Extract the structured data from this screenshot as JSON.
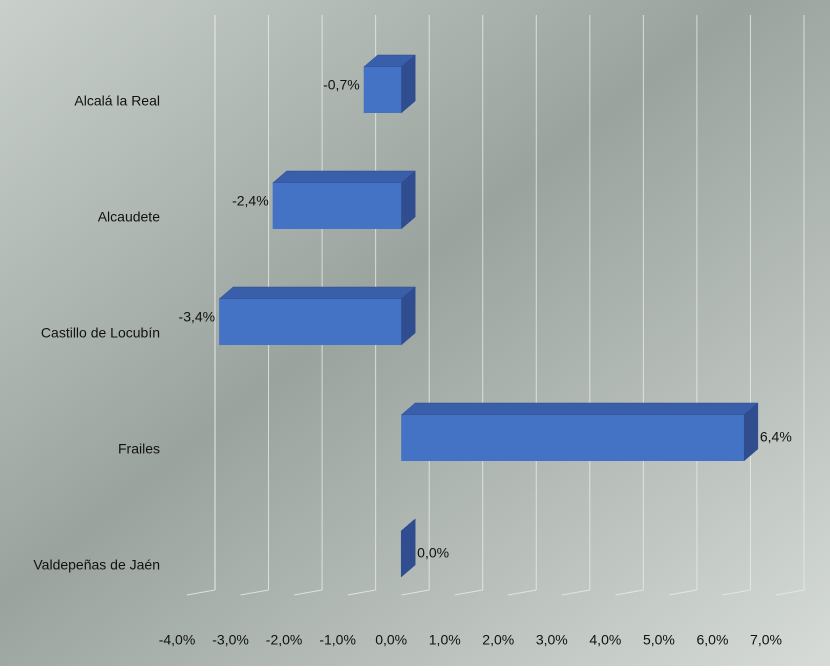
{
  "chart_data": {
    "type": "bar3d_horizontal",
    "categories": [
      "Alcalá la Real",
      "Alcaudete",
      "Castillo de Locubín",
      "Frailes",
      "Valdepeñas de Jaén"
    ],
    "values": [
      -0.7,
      -2.4,
      -3.4,
      6.4,
      0.0
    ],
    "value_labels": [
      "-0,7%",
      "-2,4%",
      "-3,4%",
      "6,4%",
      "0,0%"
    ],
    "color": "#4472c4",
    "xlim": [
      -4,
      7
    ],
    "xticks": [
      {
        "value": -4,
        "label": "-4,0%"
      },
      {
        "value": -3,
        "label": "-3,0%"
      },
      {
        "value": -2,
        "label": "-2,0%"
      },
      {
        "value": -1,
        "label": "-1,0%"
      },
      {
        "value": 0,
        "label": "0,0%"
      },
      {
        "value": 1,
        "label": "1,0%"
      },
      {
        "value": 2,
        "label": "2,0%"
      },
      {
        "value": 3,
        "label": "3,0%"
      },
      {
        "value": 4,
        "label": "4,0%"
      },
      {
        "value": 5,
        "label": "5,0%"
      },
      {
        "value": 6,
        "label": "6,0%"
      },
      {
        "value": 7,
        "label": "7,0%"
      }
    ],
    "grid": true
  }
}
